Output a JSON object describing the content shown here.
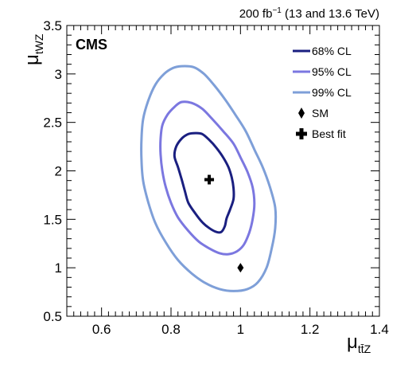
{
  "chart_data": {
    "type": "contour",
    "header": {
      "lumi_value": "200 fb",
      "lumi_exponent": "−1",
      "energy": " (13 and 13.6 TeV)"
    },
    "experiment_label": "CMS",
    "xlabel": {
      "symbol": "μ",
      "subscript": "tt̄Z"
    },
    "ylabel": {
      "symbol": "μ",
      "subscript": "tWZ"
    },
    "xlim": [
      0.5,
      1.4
    ],
    "ylim": [
      0.5,
      3.5
    ],
    "x_ticks": [
      {
        "value": 0.6,
        "label": "0.6"
      },
      {
        "value": 0.8,
        "label": "0.8"
      },
      {
        "value": 1.0,
        "label": "1"
      },
      {
        "value": 1.2,
        "label": "1.2"
      },
      {
        "value": 1.4,
        "label": "1.4"
      }
    ],
    "y_ticks": [
      {
        "value": 0.5,
        "label": "0.5"
      },
      {
        "value": 1.0,
        "label": "1"
      },
      {
        "value": 1.5,
        "label": "1.5"
      },
      {
        "value": 2.0,
        "label": "2"
      },
      {
        "value": 2.5,
        "label": "2.5"
      },
      {
        "value": 3.0,
        "label": "3"
      },
      {
        "value": 3.5,
        "label": "3.5"
      }
    ],
    "contours": [
      {
        "name": "68% CL",
        "color": "#1a1f80",
        "points": [
          [
            0.87,
            2.39
          ],
          [
            0.89,
            2.38
          ],
          [
            0.91,
            2.32
          ],
          [
            0.93,
            2.24
          ],
          [
            0.95,
            2.14
          ],
          [
            0.965,
            2.04
          ],
          [
            0.975,
            1.93
          ],
          [
            0.98,
            1.82
          ],
          [
            0.98,
            1.71
          ],
          [
            0.97,
            1.6
          ],
          [
            0.96,
            1.51
          ],
          [
            0.955,
            1.43
          ],
          [
            0.945,
            1.37
          ],
          [
            0.93,
            1.37
          ],
          [
            0.91,
            1.41
          ],
          [
            0.89,
            1.47
          ],
          [
            0.87,
            1.56
          ],
          [
            0.85,
            1.67
          ],
          [
            0.84,
            1.79
          ],
          [
            0.83,
            1.92
          ],
          [
            0.82,
            2.04
          ],
          [
            0.81,
            2.15
          ],
          [
            0.815,
            2.25
          ],
          [
            0.83,
            2.33
          ],
          [
            0.85,
            2.38
          ]
        ]
      },
      {
        "name": "95% CL",
        "color": "#7b77e0",
        "points": [
          [
            0.83,
            2.71
          ],
          [
            0.86,
            2.7
          ],
          [
            0.89,
            2.64
          ],
          [
            0.92,
            2.53
          ],
          [
            0.95,
            2.41
          ],
          [
            0.98,
            2.28
          ],
          [
            1.0,
            2.14
          ],
          [
            1.02,
            1.99
          ],
          [
            1.035,
            1.83
          ],
          [
            1.04,
            1.66
          ],
          [
            1.035,
            1.5
          ],
          [
            1.025,
            1.36
          ],
          [
            1.01,
            1.24
          ],
          [
            0.99,
            1.17
          ],
          [
            0.965,
            1.14
          ],
          [
            0.94,
            1.15
          ],
          [
            0.91,
            1.2
          ],
          [
            0.88,
            1.27
          ],
          [
            0.85,
            1.38
          ],
          [
            0.82,
            1.52
          ],
          [
            0.8,
            1.67
          ],
          [
            0.785,
            1.83
          ],
          [
            0.775,
            2.0
          ],
          [
            0.77,
            2.17
          ],
          [
            0.77,
            2.33
          ],
          [
            0.775,
            2.47
          ],
          [
            0.79,
            2.58
          ],
          [
            0.81,
            2.66
          ]
        ]
      },
      {
        "name": "99% CL",
        "color": "#7e9fd8",
        "points": [
          [
            0.83,
            3.08
          ],
          [
            0.865,
            3.07
          ],
          [
            0.895,
            3.0
          ],
          [
            0.925,
            2.88
          ],
          [
            0.955,
            2.74
          ],
          [
            0.985,
            2.58
          ],
          [
            1.015,
            2.41
          ],
          [
            1.04,
            2.22
          ],
          [
            1.065,
            2.03
          ],
          [
            1.085,
            1.83
          ],
          [
            1.1,
            1.62
          ],
          [
            1.1,
            1.41
          ],
          [
            1.09,
            1.2
          ],
          [
            1.075,
            1.0
          ],
          [
            1.05,
            0.85
          ],
          [
            1.02,
            0.78
          ],
          [
            0.98,
            0.76
          ],
          [
            0.94,
            0.78
          ],
          [
            0.9,
            0.84
          ],
          [
            0.86,
            0.94
          ],
          [
            0.82,
            1.08
          ],
          [
            0.785,
            1.26
          ],
          [
            0.755,
            1.46
          ],
          [
            0.735,
            1.67
          ],
          [
            0.72,
            1.89
          ],
          [
            0.715,
            2.11
          ],
          [
            0.715,
            2.33
          ],
          [
            0.72,
            2.54
          ],
          [
            0.735,
            2.73
          ],
          [
            0.755,
            2.89
          ],
          [
            0.78,
            3.0
          ],
          [
            0.805,
            3.06
          ]
        ]
      }
    ],
    "sm_point": {
      "name": "SM",
      "x": 1.0,
      "y": 1.0
    },
    "best_fit": {
      "name": "Best fit",
      "x": 0.91,
      "y": 1.91
    },
    "legend": {
      "position": "top-right",
      "entries": [
        {
          "label": "68% CL",
          "kind": "line",
          "color": "#1a1f80"
        },
        {
          "label": "95% CL",
          "kind": "line",
          "color": "#7b77e0"
        },
        {
          "label": "99% CL",
          "kind": "line",
          "color": "#7e9fd8"
        },
        {
          "label": "SM",
          "kind": "diamond",
          "color": "#000000"
        },
        {
          "label": "Best fit",
          "kind": "cross",
          "color": "#000000"
        }
      ]
    }
  }
}
